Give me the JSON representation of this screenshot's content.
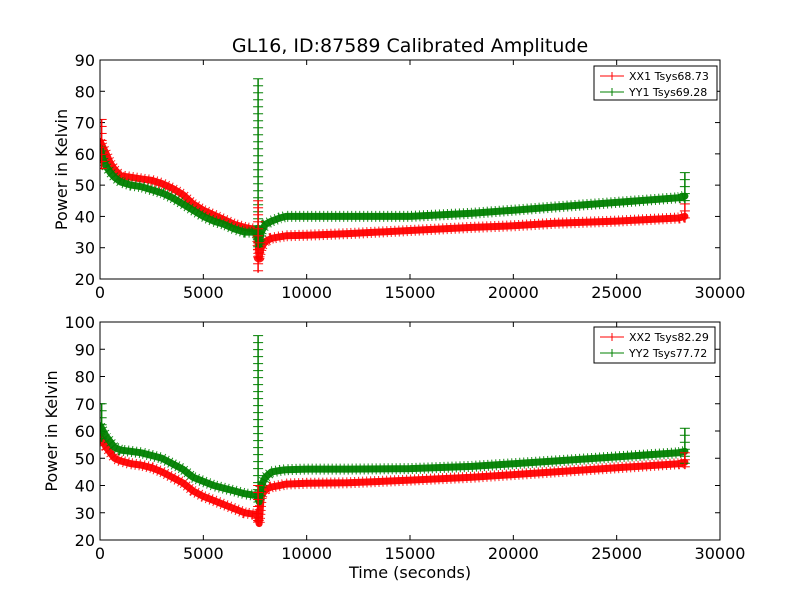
{
  "figure": {
    "title": "GL16, ID:87589 Calibrated Amplitude",
    "xlabel": "Time (seconds)",
    "colors": {
      "xx": "#ff0000",
      "yy": "#008000",
      "axes": "#000000",
      "background": "#ffffff"
    }
  },
  "chart_data": [
    {
      "type": "line",
      "marker": "plus",
      "ylabel": "Power in Kelvin",
      "xlabel": "",
      "xlim": [
        0,
        30000
      ],
      "ylim": [
        20,
        90
      ],
      "xticks": [
        0,
        5000,
        10000,
        15000,
        20000,
        25000,
        30000
      ],
      "yticks": [
        20,
        30,
        40,
        50,
        60,
        70,
        80,
        90
      ],
      "legend_position": "top-right",
      "series": [
        {
          "name": "XX1 Tsys68.73",
          "color": "#ff0000",
          "x": [
            0,
            150,
            300,
            500,
            700,
            1000,
            1500,
            2000,
            2500,
            3000,
            3500,
            4000,
            4500,
            5000,
            5500,
            6000,
            6500,
            7000,
            7400,
            7600,
            7700,
            7800,
            8000,
            8300,
            8700,
            9000,
            10000,
            12000,
            15000,
            18000,
            20000,
            22000,
            25000,
            28000,
            28300
          ],
          "y": [
            64,
            62,
            60,
            57,
            55,
            53,
            52.5,
            52,
            51.5,
            50.5,
            49,
            47,
            44,
            42,
            40.5,
            39,
            37.5,
            36.5,
            36,
            35.5,
            27,
            30,
            32,
            33,
            33.5,
            33.8,
            34,
            34.5,
            35.5,
            36.5,
            37,
            37.8,
            38.5,
            39.5,
            40
          ]
        },
        {
          "name": "YY1 Tsys69.28",
          "color": "#008000",
          "x": [
            0,
            150,
            300,
            500,
            700,
            1000,
            1500,
            2000,
            2500,
            3000,
            3500,
            4000,
            4500,
            5000,
            5500,
            6000,
            6500,
            7000,
            7400,
            7600,
            7700,
            7800,
            8000,
            8300,
            8700,
            9000,
            10000,
            12000,
            15000,
            18000,
            20000,
            22000,
            25000,
            28000,
            28300
          ],
          "y": [
            62,
            58,
            56,
            54,
            52.5,
            51,
            50,
            49.5,
            48.5,
            47.5,
            46,
            44,
            42,
            40,
            38.5,
            37.5,
            36,
            35,
            35,
            35.5,
            31,
            35,
            37.5,
            38.5,
            39.5,
            40,
            40,
            40,
            40,
            41,
            42,
            43,
            44.5,
            46,
            46.5
          ]
        }
      ],
      "spikes": [
        {
          "series": "YY1 Tsys69.28",
          "x": 7650,
          "ymin": 30,
          "ymax": 84
        },
        {
          "series": "XX1 Tsys68.73",
          "x": 7650,
          "ymin": 22,
          "ymax": 45
        },
        {
          "series": "YY1 Tsys69.28",
          "x": 28300,
          "ymin": 44,
          "ymax": 54
        },
        {
          "series": "XX1 Tsys68.73",
          "x": 28300,
          "ymin": 38,
          "ymax": 44
        },
        {
          "series": "XX1 Tsys68.73",
          "x": 80,
          "ymin": 55,
          "ymax": 71
        }
      ]
    },
    {
      "type": "line",
      "marker": "plus",
      "ylabel": "Power in Kelvin",
      "xlabel": "Time (seconds)",
      "xlim": [
        0,
        30000
      ],
      "ylim": [
        20,
        100
      ],
      "xticks": [
        0,
        5000,
        10000,
        15000,
        20000,
        25000,
        30000
      ],
      "yticks": [
        20,
        30,
        40,
        50,
        60,
        70,
        80,
        90,
        100
      ],
      "legend_position": "top-right",
      "series": [
        {
          "name": "XX2 Tsys82.29",
          "color": "#ff0000",
          "x": [
            0,
            150,
            300,
            500,
            700,
            1000,
            1500,
            2000,
            2500,
            3000,
            3500,
            4000,
            4500,
            5000,
            5500,
            6000,
            6500,
            7000,
            7400,
            7600,
            7700,
            7800,
            8000,
            8300,
            8700,
            9000,
            10000,
            12000,
            15000,
            18000,
            20000,
            22000,
            25000,
            28000,
            28300
          ],
          "y": [
            58,
            56,
            54,
            52,
            50,
            49,
            48,
            47.5,
            46.5,
            45,
            43,
            41,
            38,
            36,
            34.5,
            33,
            31.5,
            30,
            29.5,
            29.5,
            26,
            36,
            38.5,
            39.5,
            40,
            40.5,
            40.8,
            41,
            42,
            43,
            44,
            45,
            46.5,
            48,
            48.5
          ]
        },
        {
          "name": "YY2 Tsys77.72",
          "color": "#008000",
          "x": [
            0,
            150,
            300,
            500,
            700,
            1000,
            1500,
            2000,
            2500,
            3000,
            3500,
            4000,
            4500,
            5000,
            5500,
            6000,
            6500,
            7000,
            7400,
            7600,
            7700,
            7800,
            8000,
            8300,
            8700,
            9000,
            10000,
            12000,
            15000,
            18000,
            20000,
            22000,
            25000,
            28000,
            28300
          ],
          "y": [
            62,
            60,
            58,
            56,
            54,
            53,
            52.5,
            52,
            51,
            50,
            48,
            46,
            43,
            41.5,
            40,
            39,
            38,
            37,
            36.5,
            36.5,
            34,
            40,
            43,
            45,
            45.5,
            45.8,
            46,
            46,
            46.2,
            47,
            48,
            49,
            50.5,
            52,
            52.5
          ]
        }
      ],
      "spikes": [
        {
          "series": "YY2 Tsys77.72",
          "x": 7650,
          "ymin": 34,
          "ymax": 95
        },
        {
          "series": "XX2 Tsys82.29",
          "x": 7650,
          "ymin": 25,
          "ymax": 40
        },
        {
          "series": "YY2 Tsys77.72",
          "x": 28300,
          "ymin": 48,
          "ymax": 61
        },
        {
          "series": "XX2 Tsys82.29",
          "x": 28300,
          "ymin": 46,
          "ymax": 52
        },
        {
          "series": "YY2 Tsys77.72",
          "x": 80,
          "ymin": 56,
          "ymax": 70
        }
      ]
    }
  ]
}
